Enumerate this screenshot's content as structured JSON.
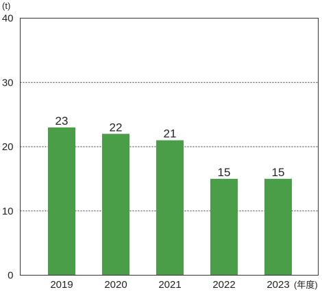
{
  "chart_data": {
    "type": "bar",
    "title": "",
    "ylabel": "(t)",
    "xlabel": "(年度)",
    "categories": [
      "2019",
      "2020",
      "2021",
      "2022",
      "2023"
    ],
    "values": [
      23,
      22,
      21,
      15,
      15
    ],
    "data_labels": [
      "23",
      "22",
      "21",
      "15",
      "15"
    ],
    "ylim": [
      0,
      40
    ],
    "yticks": [
      0,
      10,
      20,
      30,
      40
    ],
    "ytick_labels": [
      "0",
      "10",
      "20",
      "30",
      "40"
    ],
    "grid": "dashed horizontal",
    "legend": "none",
    "bar_color": "#4a9e47"
  }
}
